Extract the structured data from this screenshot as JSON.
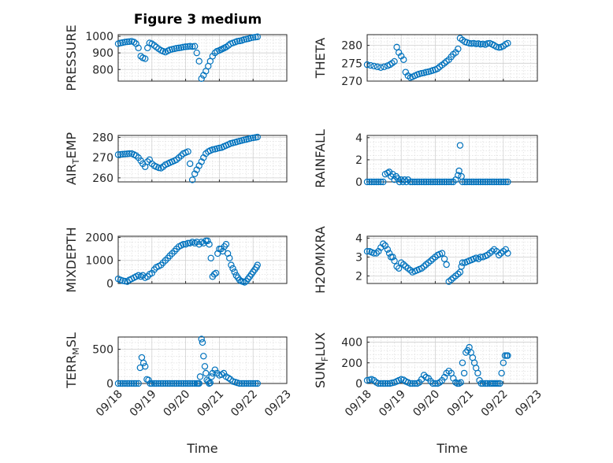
{
  "figure": {
    "title": "Figure 3 medium"
  },
  "colors": {
    "marker": "#0072BD",
    "grid": "#d0d0d0",
    "axes": "#262626"
  },
  "x_ticks": [
    "09/18",
    "09/19",
    "09/20",
    "09/21",
    "09/22",
    "09/23"
  ],
  "x_label": "Time",
  "chart_data": [
    {
      "type": "scatter",
      "ylabel": "PRESSURE",
      "ylim": [
        730,
        1010
      ],
      "yticks": [
        800,
        900,
        1000
      ],
      "x": [
        0.0,
        0.07,
        0.13,
        0.2,
        0.27,
        0.33,
        0.4,
        0.47,
        0.53,
        0.6,
        0.67,
        0.73,
        0.8,
        0.87,
        0.93,
        1.0,
        1.07,
        1.13,
        1.2,
        1.27,
        1.33,
        1.4,
        1.47,
        1.53,
        1.6,
        1.67,
        1.73,
        1.8,
        1.87,
        1.93,
        2.0,
        2.07,
        2.13,
        2.2,
        2.27,
        2.33,
        2.4,
        2.47,
        2.53,
        2.6,
        2.67,
        2.73,
        2.8,
        2.87,
        2.93,
        3.0,
        3.05,
        3.1,
        3.15,
        3.2,
        3.27,
        3.33,
        3.4,
        3.47,
        3.53,
        3.6,
        3.67,
        3.73,
        3.8,
        3.87,
        3.93,
        4.0,
        4.07,
        4.13
      ],
      "y": [
        955,
        960,
        962,
        965,
        967,
        968,
        970,
        965,
        955,
        930,
        880,
        870,
        865,
        930,
        960,
        955,
        945,
        935,
        925,
        915,
        910,
        905,
        912,
        918,
        922,
        925,
        928,
        930,
        932,
        935,
        937,
        938,
        940,
        938,
        940,
        900,
        850,
        745,
        765,
        790,
        820,
        850,
        880,
        900,
        910,
        915,
        920,
        925,
        930,
        935,
        945,
        955,
        960,
        965,
        970,
        972,
        975,
        980,
        983,
        986,
        990,
        993,
        995,
        997
      ]
    },
    {
      "type": "scatter",
      "ylabel": "THETA",
      "ylim": [
        270,
        283
      ],
      "yticks": [
        270,
        275,
        280
      ],
      "x": [
        0.0,
        0.1,
        0.2,
        0.3,
        0.4,
        0.5,
        0.6,
        0.67,
        0.73,
        0.8,
        0.87,
        0.93,
        1.0,
        1.07,
        1.13,
        1.2,
        1.27,
        1.33,
        1.4,
        1.47,
        1.53,
        1.6,
        1.67,
        1.73,
        1.8,
        1.87,
        1.93,
        2.0,
        2.07,
        2.13,
        2.2,
        2.27,
        2.33,
        2.4,
        2.47,
        2.53,
        2.6,
        2.67,
        2.73,
        2.8,
        2.87,
        2.93,
        3.0,
        3.07,
        3.13,
        3.2,
        3.27,
        3.33,
        3.4,
        3.47,
        3.53,
        3.6,
        3.67,
        3.73,
        3.8,
        3.87,
        3.93,
        4.0,
        4.07,
        4.13
      ],
      "y": [
        274.6,
        274.4,
        274.2,
        274.0,
        273.8,
        274.0,
        274.3,
        274.6,
        275.0,
        275.5,
        279.5,
        278.0,
        277.0,
        276.0,
        272.5,
        271.5,
        271.0,
        271.2,
        271.5,
        271.8,
        272.0,
        272.2,
        272.3,
        272.5,
        272.6,
        272.8,
        273.0,
        273.2,
        273.5,
        274.0,
        274.5,
        275.0,
        275.5,
        276.0,
        276.8,
        277.5,
        278.0,
        279.0,
        282.0,
        281.5,
        281.0,
        280.8,
        280.6,
        280.5,
        280.6,
        280.4,
        280.5,
        280.3,
        280.4,
        280.2,
        280.5,
        280.6,
        280.3,
        280.0,
        279.6,
        279.4,
        279.5,
        279.8,
        280.3,
        280.6
      ]
    },
    {
      "type": "scatter",
      "ylabel": "AIR_TEMP",
      "ylim": [
        258,
        281
      ],
      "yticks": [
        260,
        270,
        280
      ],
      "x": [
        0.0,
        0.07,
        0.13,
        0.2,
        0.27,
        0.33,
        0.4,
        0.47,
        0.53,
        0.6,
        0.67,
        0.73,
        0.8,
        0.87,
        0.93,
        1.0,
        1.07,
        1.13,
        1.2,
        1.27,
        1.33,
        1.4,
        1.47,
        1.53,
        1.6,
        1.67,
        1.73,
        1.8,
        1.87,
        1.93,
        2.0,
        2.07,
        2.13,
        2.2,
        2.27,
        2.33,
        2.4,
        2.47,
        2.53,
        2.6,
        2.67,
        2.73,
        2.8,
        2.87,
        2.93,
        3.0,
        3.07,
        3.13,
        3.2,
        3.27,
        3.33,
        3.4,
        3.47,
        3.53,
        3.6,
        3.67,
        3.73,
        3.8,
        3.87,
        3.93,
        4.0,
        4.07,
        4.13
      ],
      "y": [
        271.5,
        271.6,
        271.7,
        271.8,
        271.9,
        272.0,
        272.0,
        271.5,
        271.0,
        270.0,
        268.5,
        267.0,
        265.5,
        268.0,
        269.0,
        267.0,
        266.0,
        265.5,
        265.0,
        264.8,
        265.5,
        266.5,
        267.0,
        267.5,
        268.0,
        268.5,
        269.0,
        270.0,
        271.0,
        272.0,
        272.5,
        273.0,
        267.0,
        259.0,
        262.0,
        264.0,
        266.0,
        268.0,
        270.0,
        272.0,
        273.0,
        273.5,
        274.0,
        274.2,
        274.5,
        274.8,
        275.0,
        275.5,
        276.0,
        276.5,
        277.0,
        277.3,
        277.6,
        277.9,
        278.2,
        278.5,
        278.8,
        279.0,
        279.3,
        279.6,
        279.8,
        280.0,
        280.2
      ]
    },
    {
      "type": "scatter",
      "ylabel": "RAINFALL",
      "ylim": [
        0,
        4.2
      ],
      "yticks": [
        0,
        2,
        4
      ],
      "x": [
        0.0,
        0.07,
        0.13,
        0.2,
        0.27,
        0.33,
        0.4,
        0.47,
        0.53,
        0.6,
        0.65,
        0.7,
        0.75,
        0.8,
        0.85,
        0.9,
        0.95,
        1.0,
        1.05,
        1.1,
        1.15,
        1.2,
        1.27,
        1.33,
        1.4,
        1.47,
        1.53,
        1.6,
        1.67,
        1.73,
        1.8,
        1.87,
        1.93,
        2.0,
        2.07,
        2.13,
        2.2,
        2.27,
        2.33,
        2.4,
        2.47,
        2.53,
        2.6,
        2.67,
        2.7,
        2.73,
        2.77,
        2.8,
        2.87,
        2.93,
        3.0,
        3.07,
        3.13,
        3.2,
        3.27,
        3.33,
        3.4,
        3.47,
        3.53,
        3.6,
        3.67,
        3.73,
        3.8,
        3.87,
        3.93,
        4.0,
        4.07,
        4.13
      ],
      "y": [
        0,
        0,
        0,
        0,
        0,
        0,
        0,
        0,
        0.7,
        0.8,
        0.9,
        0.5,
        0.7,
        0.2,
        0.5,
        0.3,
        0,
        0.2,
        0,
        0.2,
        0,
        0.2,
        0,
        0,
        0,
        0,
        0,
        0,
        0,
        0,
        0,
        0,
        0,
        0,
        0,
        0,
        0,
        0,
        0,
        0,
        0,
        0,
        0.2,
        0.6,
        1.0,
        3.3,
        0.5,
        0,
        0,
        0,
        0,
        0,
        0,
        0,
        0,
        0,
        0,
        0,
        0,
        0,
        0,
        0,
        0,
        0,
        0,
        0,
        0,
        0
      ]
    },
    {
      "type": "scatter",
      "ylabel": "MIXDEPTH",
      "ylim": [
        0,
        2050
      ],
      "yticks": [
        0,
        1000,
        2000
      ],
      "x": [
        0.0,
        0.07,
        0.13,
        0.2,
        0.27,
        0.33,
        0.4,
        0.47,
        0.53,
        0.6,
        0.67,
        0.73,
        0.8,
        0.87,
        0.93,
        1.0,
        1.07,
        1.13,
        1.2,
        1.27,
        1.33,
        1.4,
        1.47,
        1.53,
        1.6,
        1.67,
        1.73,
        1.8,
        1.87,
        1.93,
        2.0,
        2.07,
        2.13,
        2.2,
        2.27,
        2.33,
        2.4,
        2.47,
        2.53,
        2.6,
        2.65,
        2.7,
        2.75,
        2.8,
        2.85,
        2.9,
        2.95,
        3.0,
        3.05,
        3.1,
        3.15,
        3.2,
        3.25,
        3.3,
        3.35,
        3.4,
        3.45,
        3.5,
        3.55,
        3.6,
        3.65,
        3.7,
        3.75,
        3.8,
        3.85,
        3.9,
        3.95,
        4.0,
        4.05,
        4.1,
        4.13
      ],
      "y": [
        200,
        150,
        120,
        100,
        80,
        150,
        200,
        250,
        300,
        350,
        300,
        350,
        250,
        300,
        400,
        450,
        600,
        700,
        750,
        800,
        900,
        1000,
        1100,
        1200,
        1300,
        1400,
        1500,
        1600,
        1650,
        1700,
        1700,
        1750,
        1750,
        1800,
        1750,
        1800,
        1700,
        1800,
        1750,
        1850,
        1850,
        1700,
        1100,
        300,
        400,
        450,
        1300,
        1500,
        1500,
        1400,
        1600,
        1700,
        1300,
        1100,
        800,
        650,
        500,
        350,
        250,
        150,
        100,
        80,
        50,
        100,
        200,
        300,
        400,
        500,
        600,
        700,
        800
      ]
    },
    {
      "type": "scatter",
      "ylabel": "H2OMIXRA",
      "ylim": [
        1.6,
        4.1
      ],
      "yticks": [
        2,
        3,
        4
      ],
      "x": [
        0.0,
        0.07,
        0.13,
        0.2,
        0.27,
        0.33,
        0.4,
        0.47,
        0.53,
        0.6,
        0.65,
        0.7,
        0.75,
        0.8,
        0.87,
        0.93,
        1.0,
        1.07,
        1.13,
        1.2,
        1.27,
        1.33,
        1.4,
        1.47,
        1.53,
        1.6,
        1.67,
        1.73,
        1.8,
        1.87,
        1.93,
        2.0,
        2.07,
        2.13,
        2.2,
        2.27,
        2.33,
        2.4,
        2.47,
        2.53,
        2.6,
        2.67,
        2.73,
        2.77,
        2.8,
        2.87,
        2.93,
        3.0,
        3.07,
        3.13,
        3.2,
        3.27,
        3.33,
        3.4,
        3.47,
        3.53,
        3.6,
        3.67,
        3.73,
        3.8,
        3.87,
        3.93,
        4.0,
        4.07,
        4.13
      ],
      "y": [
        3.3,
        3.3,
        3.25,
        3.2,
        3.2,
        3.3,
        3.5,
        3.7,
        3.6,
        3.4,
        3.2,
        3.0,
        3.0,
        2.8,
        2.5,
        2.4,
        2.7,
        2.6,
        2.5,
        2.4,
        2.3,
        2.2,
        2.25,
        2.3,
        2.35,
        2.4,
        2.5,
        2.6,
        2.7,
        2.8,
        2.9,
        3.0,
        3.1,
        3.15,
        3.2,
        2.9,
        2.6,
        1.7,
        1.8,
        1.9,
        2.0,
        2.1,
        2.2,
        2.5,
        2.7,
        2.7,
        2.75,
        2.8,
        2.85,
        2.9,
        2.95,
        2.9,
        3.0,
        3.0,
        3.05,
        3.1,
        3.2,
        3.3,
        3.4,
        3.3,
        3.1,
        3.2,
        3.3,
        3.4,
        3.2
      ]
    },
    {
      "type": "scatter",
      "ylabel": "TERR_MSL",
      "ylim": [
        0,
        680
      ],
      "yticks": [
        0,
        500
      ],
      "x": [
        0.0,
        0.07,
        0.13,
        0.2,
        0.27,
        0.33,
        0.4,
        0.47,
        0.53,
        0.6,
        0.65,
        0.7,
        0.75,
        0.8,
        0.85,
        0.9,
        0.95,
        1.0,
        1.07,
        1.13,
        1.2,
        1.27,
        1.33,
        1.4,
        1.47,
        1.53,
        1.6,
        1.67,
        1.73,
        1.8,
        1.87,
        1.93,
        2.0,
        2.07,
        2.13,
        2.2,
        2.27,
        2.33,
        2.37,
        2.4,
        2.43,
        2.47,
        2.5,
        2.53,
        2.57,
        2.6,
        2.63,
        2.67,
        2.7,
        2.73,
        2.77,
        2.8,
        2.87,
        2.93,
        3.0,
        3.07,
        3.13,
        3.2,
        3.27,
        3.33,
        3.4,
        3.47,
        3.53,
        3.6,
        3.67,
        3.73,
        3.8,
        3.87,
        3.93,
        4.0,
        4.07,
        4.13
      ],
      "y": [
        0,
        0,
        0,
        0,
        0,
        0,
        0,
        0,
        0,
        0,
        230,
        380,
        300,
        250,
        60,
        50,
        0,
        0,
        0,
        0,
        0,
        0,
        0,
        0,
        0,
        0,
        0,
        0,
        0,
        0,
        0,
        0,
        0,
        0,
        0,
        0,
        0,
        0,
        0,
        0,
        100,
        650,
        600,
        400,
        250,
        150,
        50,
        30,
        0,
        10,
        100,
        150,
        200,
        150,
        120,
        130,
        150,
        100,
        80,
        60,
        30,
        20,
        10,
        0,
        0,
        0,
        0,
        0,
        0,
        0,
        0,
        0
      ]
    },
    {
      "type": "scatter",
      "ylabel": "SUN_FLUX",
      "ylim": [
        0,
        450
      ],
      "yticks": [
        0,
        200,
        400
      ],
      "x": [
        0.0,
        0.07,
        0.13,
        0.2,
        0.27,
        0.33,
        0.4,
        0.47,
        0.53,
        0.6,
        0.67,
        0.73,
        0.8,
        0.87,
        0.93,
        1.0,
        1.07,
        1.13,
        1.2,
        1.27,
        1.33,
        1.4,
        1.47,
        1.53,
        1.6,
        1.67,
        1.73,
        1.8,
        1.87,
        1.93,
        2.0,
        2.07,
        2.13,
        2.2,
        2.27,
        2.33,
        2.4,
        2.47,
        2.53,
        2.6,
        2.65,
        2.7,
        2.75,
        2.8,
        2.85,
        2.9,
        2.95,
        3.0,
        3.05,
        3.1,
        3.15,
        3.2,
        3.25,
        3.3,
        3.35,
        3.4,
        3.47,
        3.53,
        3.6,
        3.65,
        3.7,
        3.75,
        3.8,
        3.85,
        3.9,
        3.95,
        4.0,
        4.05,
        4.1,
        4.13
      ],
      "y": [
        30,
        35,
        40,
        30,
        10,
        0,
        0,
        0,
        0,
        0,
        0,
        5,
        10,
        20,
        30,
        40,
        35,
        20,
        10,
        0,
        0,
        0,
        0,
        10,
        40,
        80,
        60,
        50,
        20,
        0,
        0,
        0,
        10,
        30,
        60,
        100,
        120,
        100,
        50,
        10,
        0,
        0,
        10,
        200,
        100,
        300,
        320,
        350,
        300,
        250,
        200,
        150,
        100,
        30,
        0,
        0,
        0,
        0,
        0,
        0,
        0,
        0,
        0,
        0,
        0,
        100,
        200,
        270,
        270,
        270
      ]
    }
  ]
}
